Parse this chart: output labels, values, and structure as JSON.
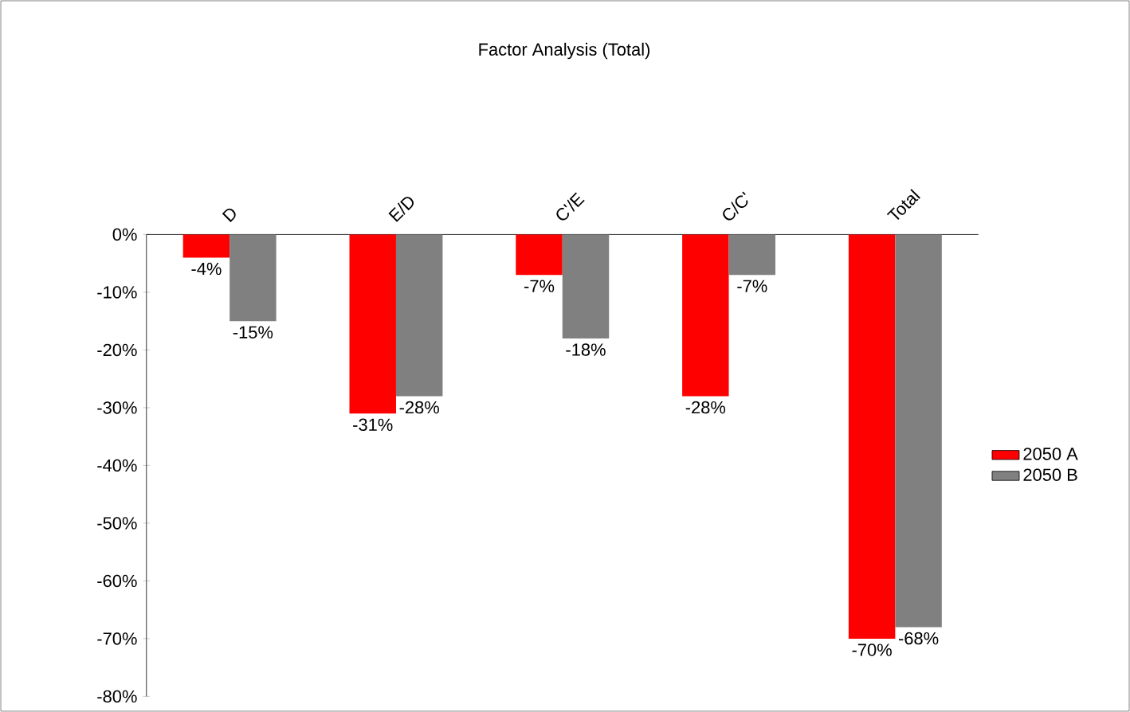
{
  "chart_data": {
    "type": "bar",
    "title": "Factor Analysis (Total)",
    "categories": [
      "D",
      "E/D",
      "C'/E",
      "C/C'",
      "Total"
    ],
    "series": [
      {
        "name": "2050 A",
        "color": "#ff0000",
        "values": [
          -4,
          -31,
          -7,
          -28,
          -70
        ],
        "value_labels": [
          "-4%",
          "-31%",
          "-7%",
          "-28%",
          "-70%"
        ]
      },
      {
        "name": "2050 B",
        "color": "#808080",
        "values": [
          -15,
          -28,
          -18,
          -7,
          -68
        ],
        "value_labels": [
          "-15%",
          "-28%",
          "-18%",
          "-7%",
          "-68%"
        ]
      }
    ],
    "ylim": [
      -80,
      0
    ],
    "yticks": [
      {
        "value": 0,
        "label": "0%"
      },
      {
        "value": -10,
        "label": "-10%"
      },
      {
        "value": -20,
        "label": "-20%"
      },
      {
        "value": -30,
        "label": "-30%"
      },
      {
        "value": -40,
        "label": "-40%"
      },
      {
        "value": -50,
        "label": "-50%"
      },
      {
        "value": -60,
        "label": "-60%"
      },
      {
        "value": -70,
        "label": "-70%"
      },
      {
        "value": -80,
        "label": "-80%"
      }
    ],
    "grid": false,
    "legend": "right"
  }
}
